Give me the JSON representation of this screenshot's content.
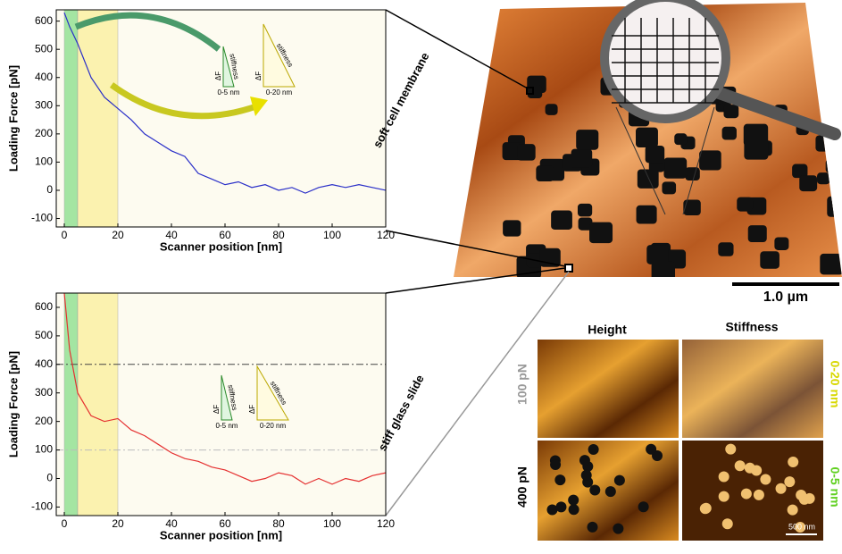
{
  "chart_data": [
    {
      "type": "line",
      "xlabel": "Scanner position [nm]",
      "ylabel": "Loading Force [pN]",
      "x": [
        0,
        2,
        5,
        10,
        15,
        20,
        25,
        30,
        35,
        40,
        45,
        50,
        55,
        60,
        65,
        70,
        75,
        80,
        85,
        90,
        95,
        100,
        105,
        110,
        115,
        120
      ],
      "series": [
        {
          "color": "#2a2fc8",
          "values": [
            630,
            580,
            520,
            400,
            330,
            290,
            250,
            200,
            170,
            140,
            120,
            60,
            40,
            20,
            30,
            10,
            20,
            0,
            10,
            -10,
            10,
            20,
            10,
            20,
            10,
            0
          ]
        }
      ],
      "xlim": [
        -3,
        120
      ],
      "ylim": [
        -130,
        640
      ],
      "xticks": [
        0,
        20,
        40,
        60,
        80,
        100,
        120
      ],
      "yticks": [
        -100,
        0,
        100,
        200,
        300,
        400,
        500,
        600
      ],
      "regions": [
        {
          "from": 0,
          "to": 5,
          "color": "#8fe08f"
        },
        {
          "from": 5,
          "to": 20,
          "color": "#fbf0a0"
        }
      ],
      "hlines": [],
      "side_label": "soft cell membrane",
      "triangles": [
        {
          "dF": "ΔF",
          "side": "stiffness",
          "range": "0-5 nm"
        },
        {
          "dF": "ΔF",
          "side": "stiffness",
          "range": "0-20 nm"
        }
      ]
    },
    {
      "type": "line",
      "xlabel": "Scanner position [nm]",
      "ylabel": "Loading Force [pN]",
      "x": [
        0,
        2,
        4,
        5,
        10,
        15,
        20,
        25,
        30,
        35,
        40,
        45,
        50,
        55,
        60,
        65,
        70,
        75,
        80,
        85,
        90,
        95,
        100,
        105,
        110,
        115,
        120
      ],
      "series": [
        {
          "color": "#e53030",
          "values": [
            650,
            450,
            350,
            300,
            220,
            200,
            210,
            170,
            150,
            120,
            90,
            70,
            60,
            40,
            30,
            10,
            -10,
            0,
            20,
            10,
            -20,
            0,
            -20,
            0,
            -10,
            10,
            20
          ]
        }
      ],
      "xlim": [
        -3,
        120
      ],
      "ylim": [
        -130,
        650
      ],
      "xticks": [
        0,
        20,
        40,
        60,
        80,
        100,
        120
      ],
      "yticks": [
        -100,
        0,
        100,
        200,
        300,
        400,
        500,
        600
      ],
      "regions": [
        {
          "from": 0,
          "to": 5,
          "color": "#8fe08f"
        },
        {
          "from": 5,
          "to": 20,
          "color": "#fbf0a0"
        }
      ],
      "hlines": [
        400,
        100
      ],
      "side_label": "stiff glass slide",
      "triangles": [
        {
          "dF": "ΔF",
          "side": "stiffness",
          "range": "0-5 nm"
        },
        {
          "dF": "ΔF",
          "side": "stiffness",
          "range": "0-20 nm"
        }
      ]
    }
  ],
  "image_panel": {
    "scale": "1.0 µm",
    "col_labels": [
      "Height",
      "Stiffness"
    ],
    "row_labels": [
      "100 pN",
      "400 pN"
    ],
    "side_labels": [
      "0-20 nm",
      "0-5 nm"
    ],
    "small_scale": "500 nm"
  }
}
